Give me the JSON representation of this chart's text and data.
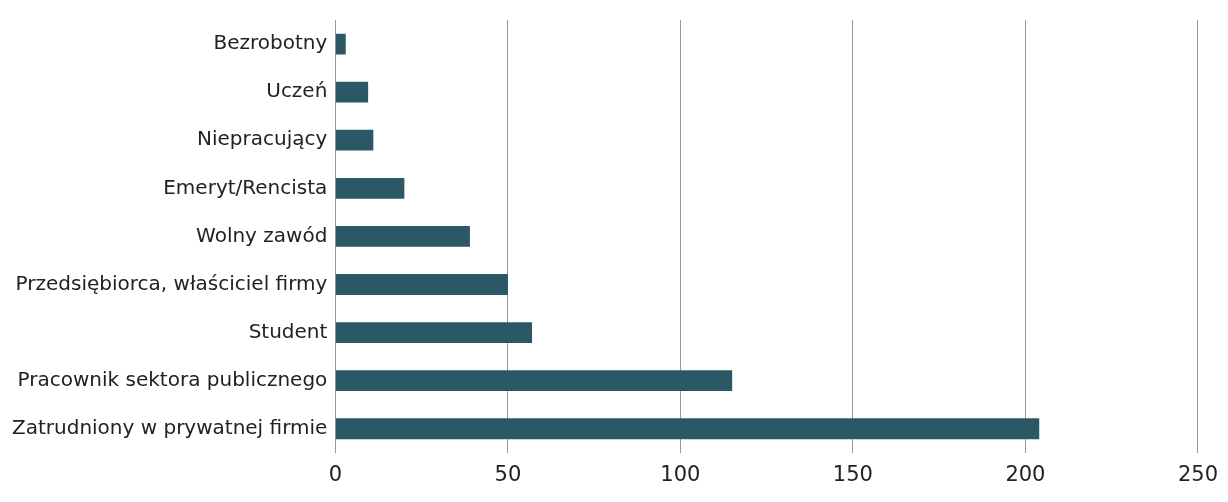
{
  "chart_data": {
    "type": "bar",
    "orientation": "horizontal",
    "categories": [
      "Bezrobotny",
      "Uczeń",
      "Niepracujący",
      "Emeryt/Rencista",
      "Wolny zawód",
      "Przedsiębiorca, właściciel firmy",
      "Student",
      "Pracownik sektora publicznego",
      "Zatrudniony w prywatnej firmie"
    ],
    "values": [
      3,
      9.5,
      11,
      20,
      39,
      50,
      57,
      115,
      204
    ],
    "color": "#2c5866",
    "xlim": [
      0,
      250
    ],
    "xticks": [
      0,
      50,
      100,
      150,
      200,
      250
    ],
    "grid": "x",
    "legend": false
  }
}
